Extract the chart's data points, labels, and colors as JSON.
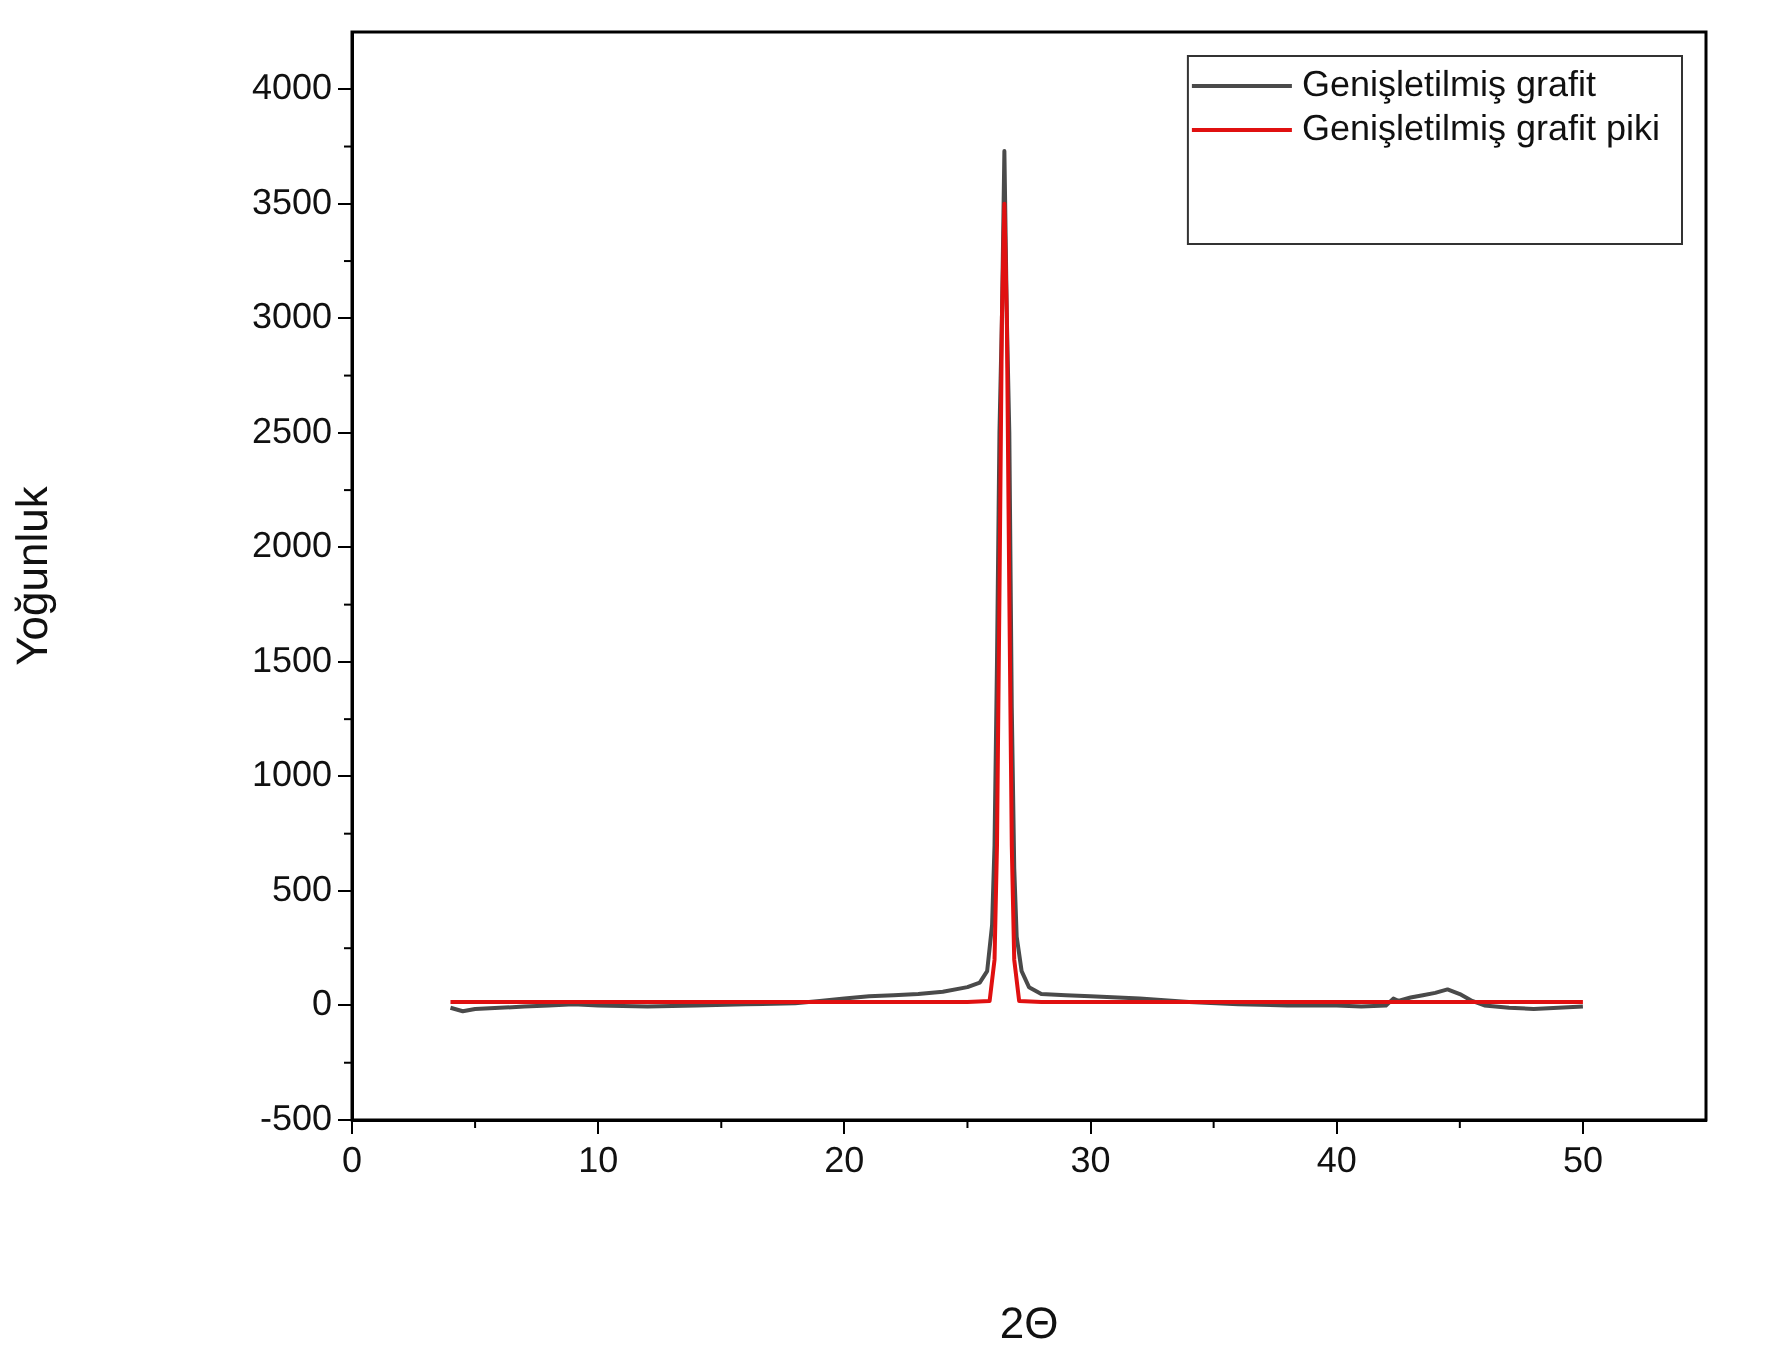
{
  "chart_data": {
    "type": "line",
    "xlabel": "2Θ",
    "ylabel": "Yoğunluk",
    "xlim": [
      0,
      55
    ],
    "xticks": [
      0,
      10,
      20,
      30,
      40,
      50
    ],
    "ylim": [
      -500,
      4250
    ],
    "yticks": [
      -500,
      0,
      500,
      1000,
      1500,
      2000,
      2500,
      3000,
      3500,
      4000
    ],
    "grid": false,
    "legend": "top right",
    "marker": "none",
    "line_style": "solid",
    "series": [
      {
        "name": "Genişletilmiş grafit",
        "color": "#4a4a4a",
        "x": [
          4,
          4.5,
          5,
          6,
          7,
          8,
          9,
          10,
          12,
          14,
          16,
          18,
          19,
          20,
          21,
          22,
          23,
          24,
          25,
          25.5,
          25.8,
          26,
          26.1,
          26.2,
          26.3,
          26.4,
          26.5,
          26.6,
          26.7,
          26.8,
          26.9,
          27,
          27.2,
          27.5,
          28,
          29,
          30,
          32,
          34,
          36,
          38,
          40,
          41,
          42,
          42.3,
          42.5,
          43,
          43.5,
          44,
          44.5,
          45,
          45.5,
          46,
          47,
          48,
          49,
          50
        ],
        "values": [
          -10,
          -25,
          -15,
          -10,
          -5,
          0,
          5,
          0,
          -5,
          0,
          5,
          10,
          20,
          30,
          40,
          45,
          50,
          60,
          80,
          100,
          150,
          350,
          700,
          1500,
          2500,
          3000,
          3730,
          3000,
          2500,
          1300,
          600,
          300,
          150,
          80,
          50,
          45,
          40,
          30,
          15,
          5,
          0,
          0,
          -5,
          0,
          30,
          20,
          35,
          45,
          55,
          70,
          50,
          20,
          0,
          -10,
          -15,
          -10,
          -5
        ]
      },
      {
        "name": "Genişletilmiş grafit piki",
        "color": "#e01010",
        "x": [
          4,
          10,
          20,
          25,
          25.9,
          26.1,
          26.2,
          26.3,
          26.4,
          26.5,
          26.6,
          26.7,
          26.8,
          26.9,
          27.1,
          28,
          35,
          40,
          45,
          50
        ],
        "values": [
          15,
          15,
          15,
          15,
          20,
          200,
          700,
          1800,
          3000,
          3500,
          3000,
          1800,
          700,
          200,
          20,
          15,
          15,
          15,
          15,
          15
        ]
      }
    ]
  }
}
